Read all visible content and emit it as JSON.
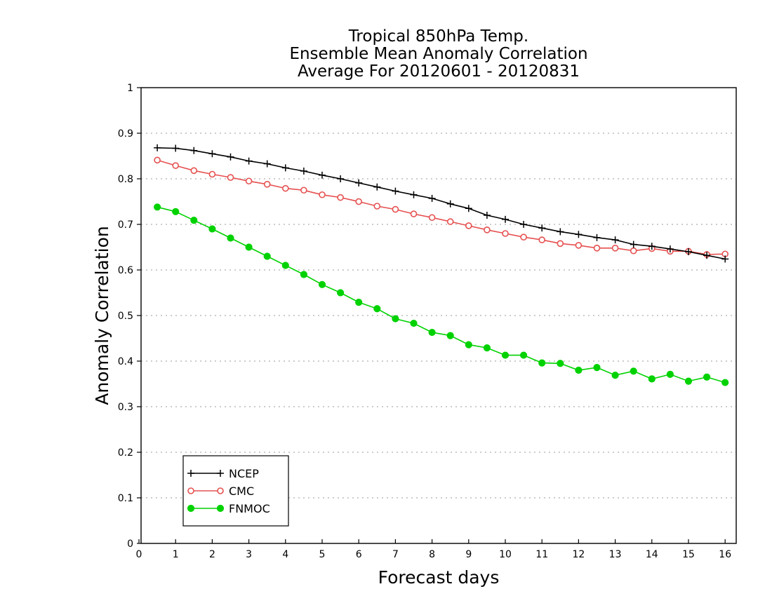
{
  "chart_data": {
    "type": "line",
    "title_lines": [
      "Tropical 850hPa Temp.",
      "Ensemble Mean Anomaly Correlation",
      "Average For 20120601 - 20120831"
    ],
    "xlabel": "Forecast days",
    "ylabel": "Anomaly Correlation",
    "xlim": [
      0,
      16.3
    ],
    "ylim": [
      0,
      1
    ],
    "xticks": [
      "0",
      "1",
      "2",
      "3",
      "4",
      "5",
      "6",
      "7",
      "8",
      "9",
      "10",
      "11",
      "12",
      "13",
      "14",
      "15",
      "16"
    ],
    "yticks": [
      "0",
      "0.1",
      "0.2",
      "0.3",
      "0.4",
      "0.5",
      "0.6",
      "0.7",
      "0.8",
      "0.9",
      "1"
    ],
    "grid": "horizontal dotted",
    "legend_position": "bottom-left",
    "x": [
      0.5,
      1,
      1.5,
      2,
      2.5,
      3,
      3.5,
      4,
      4.5,
      5,
      5.5,
      6,
      6.5,
      7,
      7.5,
      8,
      8.5,
      9,
      9.5,
      10,
      10.5,
      11,
      11.5,
      12,
      12.5,
      13,
      13.5,
      14,
      14.5,
      15,
      15.5,
      16
    ],
    "series": [
      {
        "name": "NCEP",
        "color": "#000000",
        "marker": "plus",
        "values": [
          0.868,
          0.867,
          0.862,
          0.855,
          0.848,
          0.839,
          0.833,
          0.824,
          0.817,
          0.808,
          0.8,
          0.791,
          0.782,
          0.773,
          0.765,
          0.757,
          0.745,
          0.735,
          0.72,
          0.711,
          0.7,
          0.692,
          0.684,
          0.678,
          0.671,
          0.666,
          0.656,
          0.652,
          0.646,
          0.64,
          0.632,
          0.624
        ]
      },
      {
        "name": "CMC",
        "color": "#e65050",
        "marker": "open-circle",
        "values": [
          0.841,
          0.829,
          0.818,
          0.81,
          0.803,
          0.795,
          0.788,
          0.779,
          0.775,
          0.765,
          0.759,
          0.75,
          0.74,
          0.733,
          0.723,
          0.715,
          0.706,
          0.697,
          0.688,
          0.68,
          0.672,
          0.666,
          0.658,
          0.654,
          0.648,
          0.648,
          0.642,
          0.647,
          0.641,
          0.641,
          0.634,
          0.635
        ]
      },
      {
        "name": "FNMOC",
        "color": "#00d200",
        "marker": "filled-circle",
        "values": [
          0.738,
          0.728,
          0.709,
          0.69,
          0.67,
          0.65,
          0.63,
          0.61,
          0.59,
          0.568,
          0.55,
          0.529,
          0.515,
          0.493,
          0.483,
          0.463,
          0.456,
          0.436,
          0.429,
          0.413,
          0.413,
          0.396,
          0.395,
          0.38,
          0.386,
          0.369,
          0.378,
          0.361,
          0.371,
          0.356,
          0.365,
          0.353
        ]
      }
    ]
  }
}
